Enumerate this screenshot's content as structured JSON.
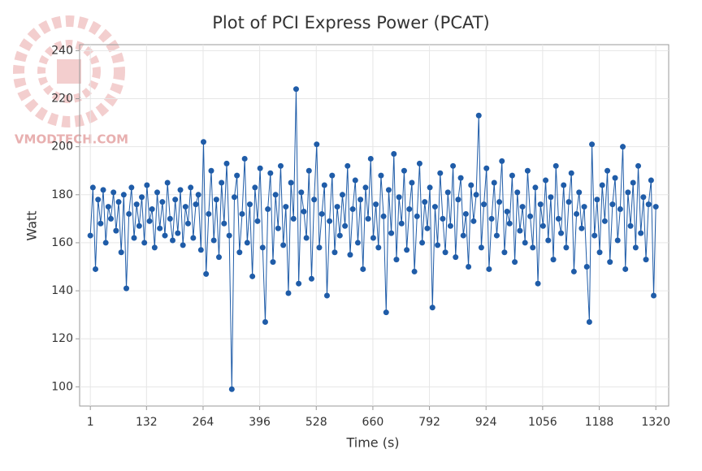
{
  "watermark": "VMODTECH.COM",
  "chart_data": {
    "type": "line",
    "title": "Plot of PCI Express Power (PCAT)",
    "x_label": "Time (s)",
    "y_label": "Watt",
    "color": "#1f5ca8",
    "grid": true,
    "markers": true,
    "xlim": [
      -24,
      1350
    ],
    "ylim": [
      92,
      242.5
    ],
    "xticks": [
      1,
      132,
      264,
      396,
      528,
      660,
      792,
      924,
      1056,
      1188,
      1320
    ],
    "yticks": [
      100,
      120,
      140,
      160,
      180,
      200,
      220,
      240
    ],
    "x": [
      1,
      7,
      13,
      19,
      25,
      31,
      37,
      43,
      49,
      55,
      61,
      67,
      73,
      79,
      85,
      91,
      97,
      103,
      109,
      115,
      121,
      127,
      133,
      139,
      145,
      151,
      157,
      163,
      169,
      175,
      181,
      187,
      193,
      199,
      205,
      211,
      217,
      223,
      229,
      235,
      241,
      247,
      253,
      259,
      265,
      271,
      277,
      283,
      289,
      295,
      301,
      307,
      313,
      319,
      325,
      331,
      337,
      343,
      349,
      355,
      361,
      367,
      373,
      379,
      385,
      391,
      397,
      403,
      409,
      415,
      421,
      427,
      433,
      439,
      445,
      451,
      457,
      463,
      469,
      475,
      481,
      487,
      493,
      499,
      505,
      511,
      517,
      523,
      529,
      535,
      541,
      547,
      553,
      559,
      565,
      571,
      577,
      583,
      589,
      595,
      601,
      607,
      613,
      619,
      625,
      631,
      637,
      643,
      649,
      655,
      661,
      667,
      673,
      679,
      685,
      691,
      697,
      703,
      709,
      715,
      721,
      727,
      733,
      739,
      745,
      751,
      757,
      763,
      769,
      775,
      781,
      787,
      793,
      799,
      805,
      811,
      817,
      823,
      829,
      835,
      841,
      847,
      853,
      859,
      865,
      871,
      877,
      883,
      889,
      895,
      901,
      907,
      913,
      919,
      925,
      931,
      937,
      943,
      949,
      955,
      961,
      967,
      973,
      979,
      985,
      991,
      997,
      1003,
      1009,
      1015,
      1021,
      1027,
      1033,
      1039,
      1045,
      1051,
      1057,
      1063,
      1069,
      1075,
      1081,
      1087,
      1093,
      1099,
      1105,
      1111,
      1117,
      1123,
      1129,
      1135,
      1141,
      1147,
      1153,
      1159,
      1165,
      1171,
      1177,
      1183,
      1189,
      1195,
      1201,
      1207,
      1213,
      1219,
      1225,
      1231,
      1237,
      1243,
      1249,
      1255,
      1261,
      1267,
      1273,
      1279,
      1285,
      1291,
      1297,
      1303,
      1309,
      1315,
      1320
    ],
    "values": [
      163,
      183,
      149,
      178,
      168,
      182,
      160,
      175,
      170,
      181,
      165,
      177,
      156,
      180,
      141,
      172,
      183,
      162,
      176,
      167,
      179,
      160,
      184,
      169,
      174,
      158,
      181,
      166,
      177,
      163,
      185,
      170,
      161,
      178,
      164,
      182,
      159,
      175,
      168,
      183,
      162,
      176,
      180,
      157,
      202,
      147,
      172,
      190,
      161,
      178,
      154,
      185,
      168,
      193,
      163,
      99,
      179,
      188,
      156,
      172,
      195,
      160,
      176,
      146,
      183,
      169,
      191,
      158,
      127,
      174,
      189,
      152,
      180,
      166,
      192,
      159,
      175,
      139,
      185,
      170,
      224,
      143,
      181,
      173,
      162,
      190,
      145,
      178,
      201,
      158,
      172,
      184,
      138,
      169,
      188,
      156,
      175,
      163,
      180,
      167,
      192,
      155,
      174,
      186,
      160,
      178,
      149,
      183,
      170,
      195,
      162,
      176,
      158,
      188,
      171,
      131,
      182,
      164,
      197,
      153,
      179,
      168,
      190,
      157,
      174,
      185,
      148,
      171,
      193,
      160,
      177,
      166,
      183,
      133,
      175,
      159,
      189,
      170,
      156,
      181,
      167,
      192,
      154,
      178,
      187,
      163,
      172,
      150,
      184,
      169,
      180,
      213,
      158,
      176,
      191,
      149,
      170,
      185,
      163,
      177,
      194,
      156,
      173,
      168,
      188,
      152,
      181,
      165,
      175,
      160,
      190,
      171,
      158,
      183,
      143,
      176,
      167,
      186,
      161,
      179,
      153,
      192,
      170,
      164,
      184,
      158,
      177,
      189,
      148,
      172,
      181,
      166,
      175,
      150,
      127,
      201,
      163,
      178,
      156,
      184,
      169,
      190,
      152,
      176,
      187,
      161,
      174,
      200,
      149,
      181,
      167,
      185,
      158,
      192,
      164,
      179,
      153,
      176,
      186,
      138,
      175
    ]
  }
}
